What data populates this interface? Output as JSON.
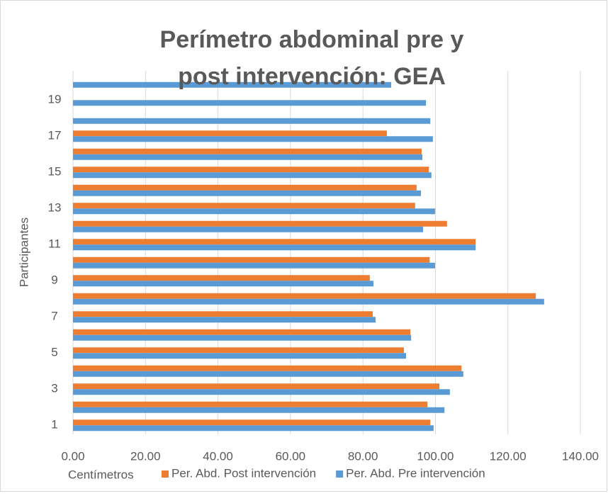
{
  "chart_data": {
    "type": "barh",
    "title": "Perímetro abdominal pre y post intervención: GEA",
    "x_label": "Centímetros",
    "y_label": "Participantes",
    "categories": [
      "1",
      null,
      "3",
      null,
      "5",
      null,
      "7",
      null,
      "9",
      null,
      "11",
      null,
      "13",
      null,
      "15",
      null,
      "17",
      null,
      "19",
      null
    ],
    "series": [
      {
        "name": "Per. Abd. Post intervención",
        "color": "#ed7d31",
        "values": [
          98.6,
          97.8,
          101.1,
          107.2,
          91.3,
          93.1,
          82.7,
          127.7,
          81.9,
          98.4,
          111.1,
          103.2,
          94.4,
          94.8,
          98.2,
          96.2,
          86.6,
          null,
          null,
          null
        ]
      },
      {
        "name": "Per. Abd. Pre intervención",
        "color": "#5b9bd5",
        "values": [
          99.5,
          102.5,
          104.0,
          107.7,
          91.9,
          93.3,
          83.5,
          130.0,
          82.9,
          99.9,
          111.1,
          96.6,
          99.9,
          96.0,
          98.9,
          96.4,
          99.3,
          98.6,
          97.4,
          87.8
        ]
      }
    ],
    "xlim": [
      0,
      140
    ],
    "xticks": [
      {
        "value": 0,
        "label": "0.00"
      },
      {
        "value": 20,
        "label": "20.00"
      },
      {
        "value": 40,
        "label": "40.00"
      },
      {
        "value": 60,
        "label": "60.00"
      },
      {
        "value": 80,
        "label": "80.00"
      },
      {
        "value": 100,
        "label": "100.00"
      },
      {
        "value": 120,
        "label": "120.00"
      },
      {
        "value": 140,
        "label": "140.00"
      }
    ],
    "grid": true,
    "legend": "bottom"
  }
}
